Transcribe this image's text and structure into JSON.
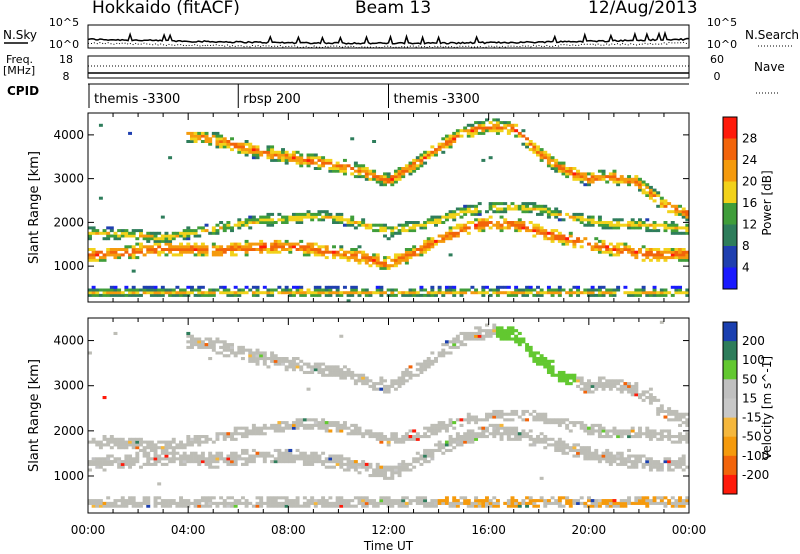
{
  "header": {
    "left": "Hokkaido (fitACF)",
    "center": "Beam 13",
    "right": "12/Aug/2013"
  },
  "strips": {
    "nsky_label": "N.Sky",
    "nsearch_label": "N.Search",
    "count_ticks": [
      "10^5",
      "10^0"
    ],
    "freq_label_1": "Freq.",
    "freq_label_2": "[MHz]",
    "freq_ticks": [
      "18",
      "8"
    ],
    "nave_label": "Nave",
    "nave_ticks": [
      "60",
      "0"
    ],
    "cpid_label": "CPID",
    "cpid_segments": [
      {
        "label": "themis -3300",
        "start_hour": 0.0
      },
      {
        "label": "rbsp 200",
        "start_hour": 6.0
      },
      {
        "label": "themis -3300",
        "start_hour": 12.0
      }
    ]
  },
  "colors": {
    "power_scale": [
      "#1a1aff",
      "#1f3fb0",
      "#2e7d5b",
      "#3f9d3a",
      "#f2d21a",
      "#f59a0c",
      "#f2640a",
      "#ff1a0a"
    ],
    "velocity_scale": [
      "#ff1a0a",
      "#f2640a",
      "#f59a0c",
      "#f5b73c",
      "#c8c8c8",
      "#c0c0c0",
      "#62c830",
      "#2e7d5b",
      "#1a3fb0"
    ],
    "ground_scatter": "#bdbdb6"
  },
  "chart_data": [
    {
      "type": "heatmap",
      "name": "power",
      "ylabel": "Slant Range [km]",
      "xlim_hours": [
        0,
        24
      ],
      "ylim_km": [
        180,
        4500
      ],
      "yticks": [
        "4000",
        "3000",
        "2000",
        "1000"
      ],
      "colorbar_label": "Power [dB]",
      "colorbar_ticks": [
        "28",
        "24",
        "20",
        "16",
        "12",
        "8",
        "4"
      ],
      "range_cells": 70,
      "time_steps": 165,
      "echo_bands": [
        {
          "comment": "main F-region band",
          "points": [
            [
              0,
              1250
            ],
            [
              1,
              1300
            ],
            [
              2,
              1350
            ],
            [
              3,
              1400
            ],
            [
              4,
              1400
            ],
            [
              5,
              1350
            ],
            [
              6,
              1400
            ],
            [
              7,
              1450
            ],
            [
              8,
              1450
            ],
            [
              9,
              1400
            ],
            [
              10,
              1300
            ],
            [
              11,
              1200
            ],
            [
              12,
              1050
            ],
            [
              13,
              1300
            ],
            [
              14,
              1600
            ],
            [
              15,
              1850
            ],
            [
              16,
              2000
            ],
            [
              17,
              1950
            ],
            [
              18,
              1800
            ],
            [
              19,
              1650
            ],
            [
              20,
              1500
            ],
            [
              21,
              1400
            ],
            [
              22,
              1300
            ],
            [
              23,
              1250
            ],
            [
              24,
              1300
            ]
          ],
          "width_km": 320,
          "power": [
            14,
            30
          ]
        },
        {
          "comment": "secondary band",
          "points": [
            [
              0,
              1750
            ],
            [
              1,
              1750
            ],
            [
              2,
              1700
            ],
            [
              3,
              1650
            ],
            [
              4,
              1750
            ],
            [
              5,
              1850
            ],
            [
              6,
              1950
            ],
            [
              7,
              2050
            ],
            [
              8,
              2100
            ],
            [
              9,
              2150
            ],
            [
              10,
              2100
            ],
            [
              11,
              1950
            ],
            [
              12,
              1800
            ],
            [
              13,
              1900
            ],
            [
              14,
              2050
            ],
            [
              15,
              2250
            ],
            [
              16,
              2350
            ],
            [
              17,
              2350
            ],
            [
              18,
              2300
            ],
            [
              19,
              2150
            ],
            [
              20,
              2050
            ],
            [
              21,
              1950
            ],
            [
              22,
              1950
            ],
            [
              23,
              1900
            ],
            [
              24,
              1850
            ]
          ],
          "width_km": 260,
          "power": [
            8,
            22
          ]
        },
        {
          "comment": "upper band",
          "points": [
            [
              4,
              4000
            ],
            [
              5,
              3900
            ],
            [
              6,
              3750
            ],
            [
              7,
              3600
            ],
            [
              8,
              3500
            ],
            [
              9,
              3400
            ],
            [
              10,
              3300
            ],
            [
              11,
              3150
            ],
            [
              12,
              2950
            ],
            [
              13,
              3300
            ],
            [
              14,
              3700
            ],
            [
              15,
              4050
            ],
            [
              16,
              4200
            ],
            [
              17,
              4150
            ],
            [
              18,
              3600
            ],
            [
              19,
              3200
            ],
            [
              20,
              3000
            ],
            [
              21,
              3050
            ],
            [
              22,
              2900
            ],
            [
              23,
              2400
            ],
            [
              24,
              2200
            ]
          ],
          "width_km": 330,
          "power": [
            10,
            30
          ]
        },
        {
          "comment": "near range",
          "points": [
            [
              0,
              400
            ],
            [
              6,
              400
            ],
            [
              12,
              400
            ],
            [
              18,
              400
            ],
            [
              24,
              400
            ]
          ],
          "width_km": 240,
          "power": [
            4,
            24
          ]
        }
      ]
    },
    {
      "type": "heatmap",
      "name": "velocity",
      "ylabel": "Slant Range [km]",
      "xlabel": "Time UT",
      "xlim_hours": [
        0,
        24
      ],
      "ylim_km": [
        180,
        4500
      ],
      "xticks": [
        "00:00",
        "04:00",
        "08:00",
        "12:00",
        "16:00",
        "20:00",
        "00:00"
      ],
      "yticks": [
        "4000",
        "3000",
        "2000",
        "1000"
      ],
      "colorbar_label": "Velocity [m s^-1]",
      "colorbar_ticks": [
        "200",
        "100",
        "50",
        "15",
        "-15",
        "-50",
        "-100",
        "-200"
      ],
      "notes": [
        "mostly ground scatter (grey) in the main bands",
        "green positive velocities at ~16:30-19:30, 2500-4200 km",
        "orange negative velocities near 300-500 km late in the day"
      ]
    }
  ]
}
